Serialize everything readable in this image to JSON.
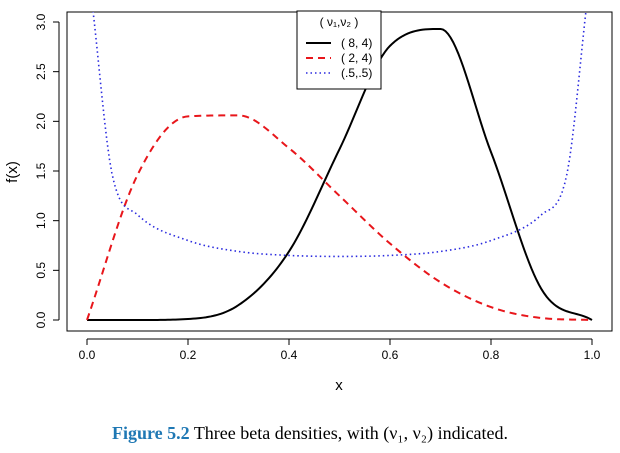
{
  "chart_data": {
    "type": "line",
    "xlabel": "x",
    "ylabel": "f(x)",
    "xlim": [
      0,
      1
    ],
    "ylim": [
      0,
      3.0
    ],
    "x_ticks": [
      "0.0",
      "0.2",
      "0.4",
      "0.6",
      "0.8",
      "1.0"
    ],
    "y_ticks": [
      "0.0",
      "0.5",
      "1.0",
      "1.5",
      "2.0",
      "2.5",
      "3.0"
    ],
    "legend": {
      "title": "( ν₁,ν₂ )",
      "placement": "top-center"
    },
    "series": [
      {
        "name": "( 8, 4)",
        "color": "#000000",
        "style": "solid",
        "x": [
          0.0,
          0.1,
          0.2,
          0.3,
          0.4,
          0.5,
          0.6,
          0.7,
          0.8,
          0.9,
          1.0
        ],
        "y": [
          0.0,
          0.0,
          0.01,
          0.15,
          0.69,
          1.72,
          2.76,
          2.93,
          1.69,
          0.31,
          0.0
        ]
      },
      {
        "name": "( 2, 4)",
        "color": "#e8161b",
        "style": "dashed",
        "x": [
          0.0,
          0.1,
          0.2,
          0.3,
          0.4,
          0.5,
          0.6,
          0.7,
          0.8,
          0.9,
          1.0
        ],
        "y": [
          0.0,
          1.46,
          2.05,
          2.06,
          1.73,
          1.25,
          0.77,
          0.38,
          0.13,
          0.02,
          0.0
        ]
      },
      {
        "name": "(.5,.5)",
        "color": "#2a2adf",
        "style": "dotted",
        "x": [
          0.01,
          0.05,
          0.1,
          0.2,
          0.3,
          0.4,
          0.5,
          0.6,
          0.7,
          0.8,
          0.9,
          0.95,
          0.99
        ],
        "y": [
          3.2,
          1.46,
          1.06,
          0.8,
          0.69,
          0.65,
          0.64,
          0.65,
          0.69,
          0.8,
          1.06,
          1.46,
          3.2
        ]
      }
    ]
  },
  "caption": {
    "label": "Figure 5.2",
    "text": "Three beta densities, with (ν₁, ν₂) indicated."
  }
}
